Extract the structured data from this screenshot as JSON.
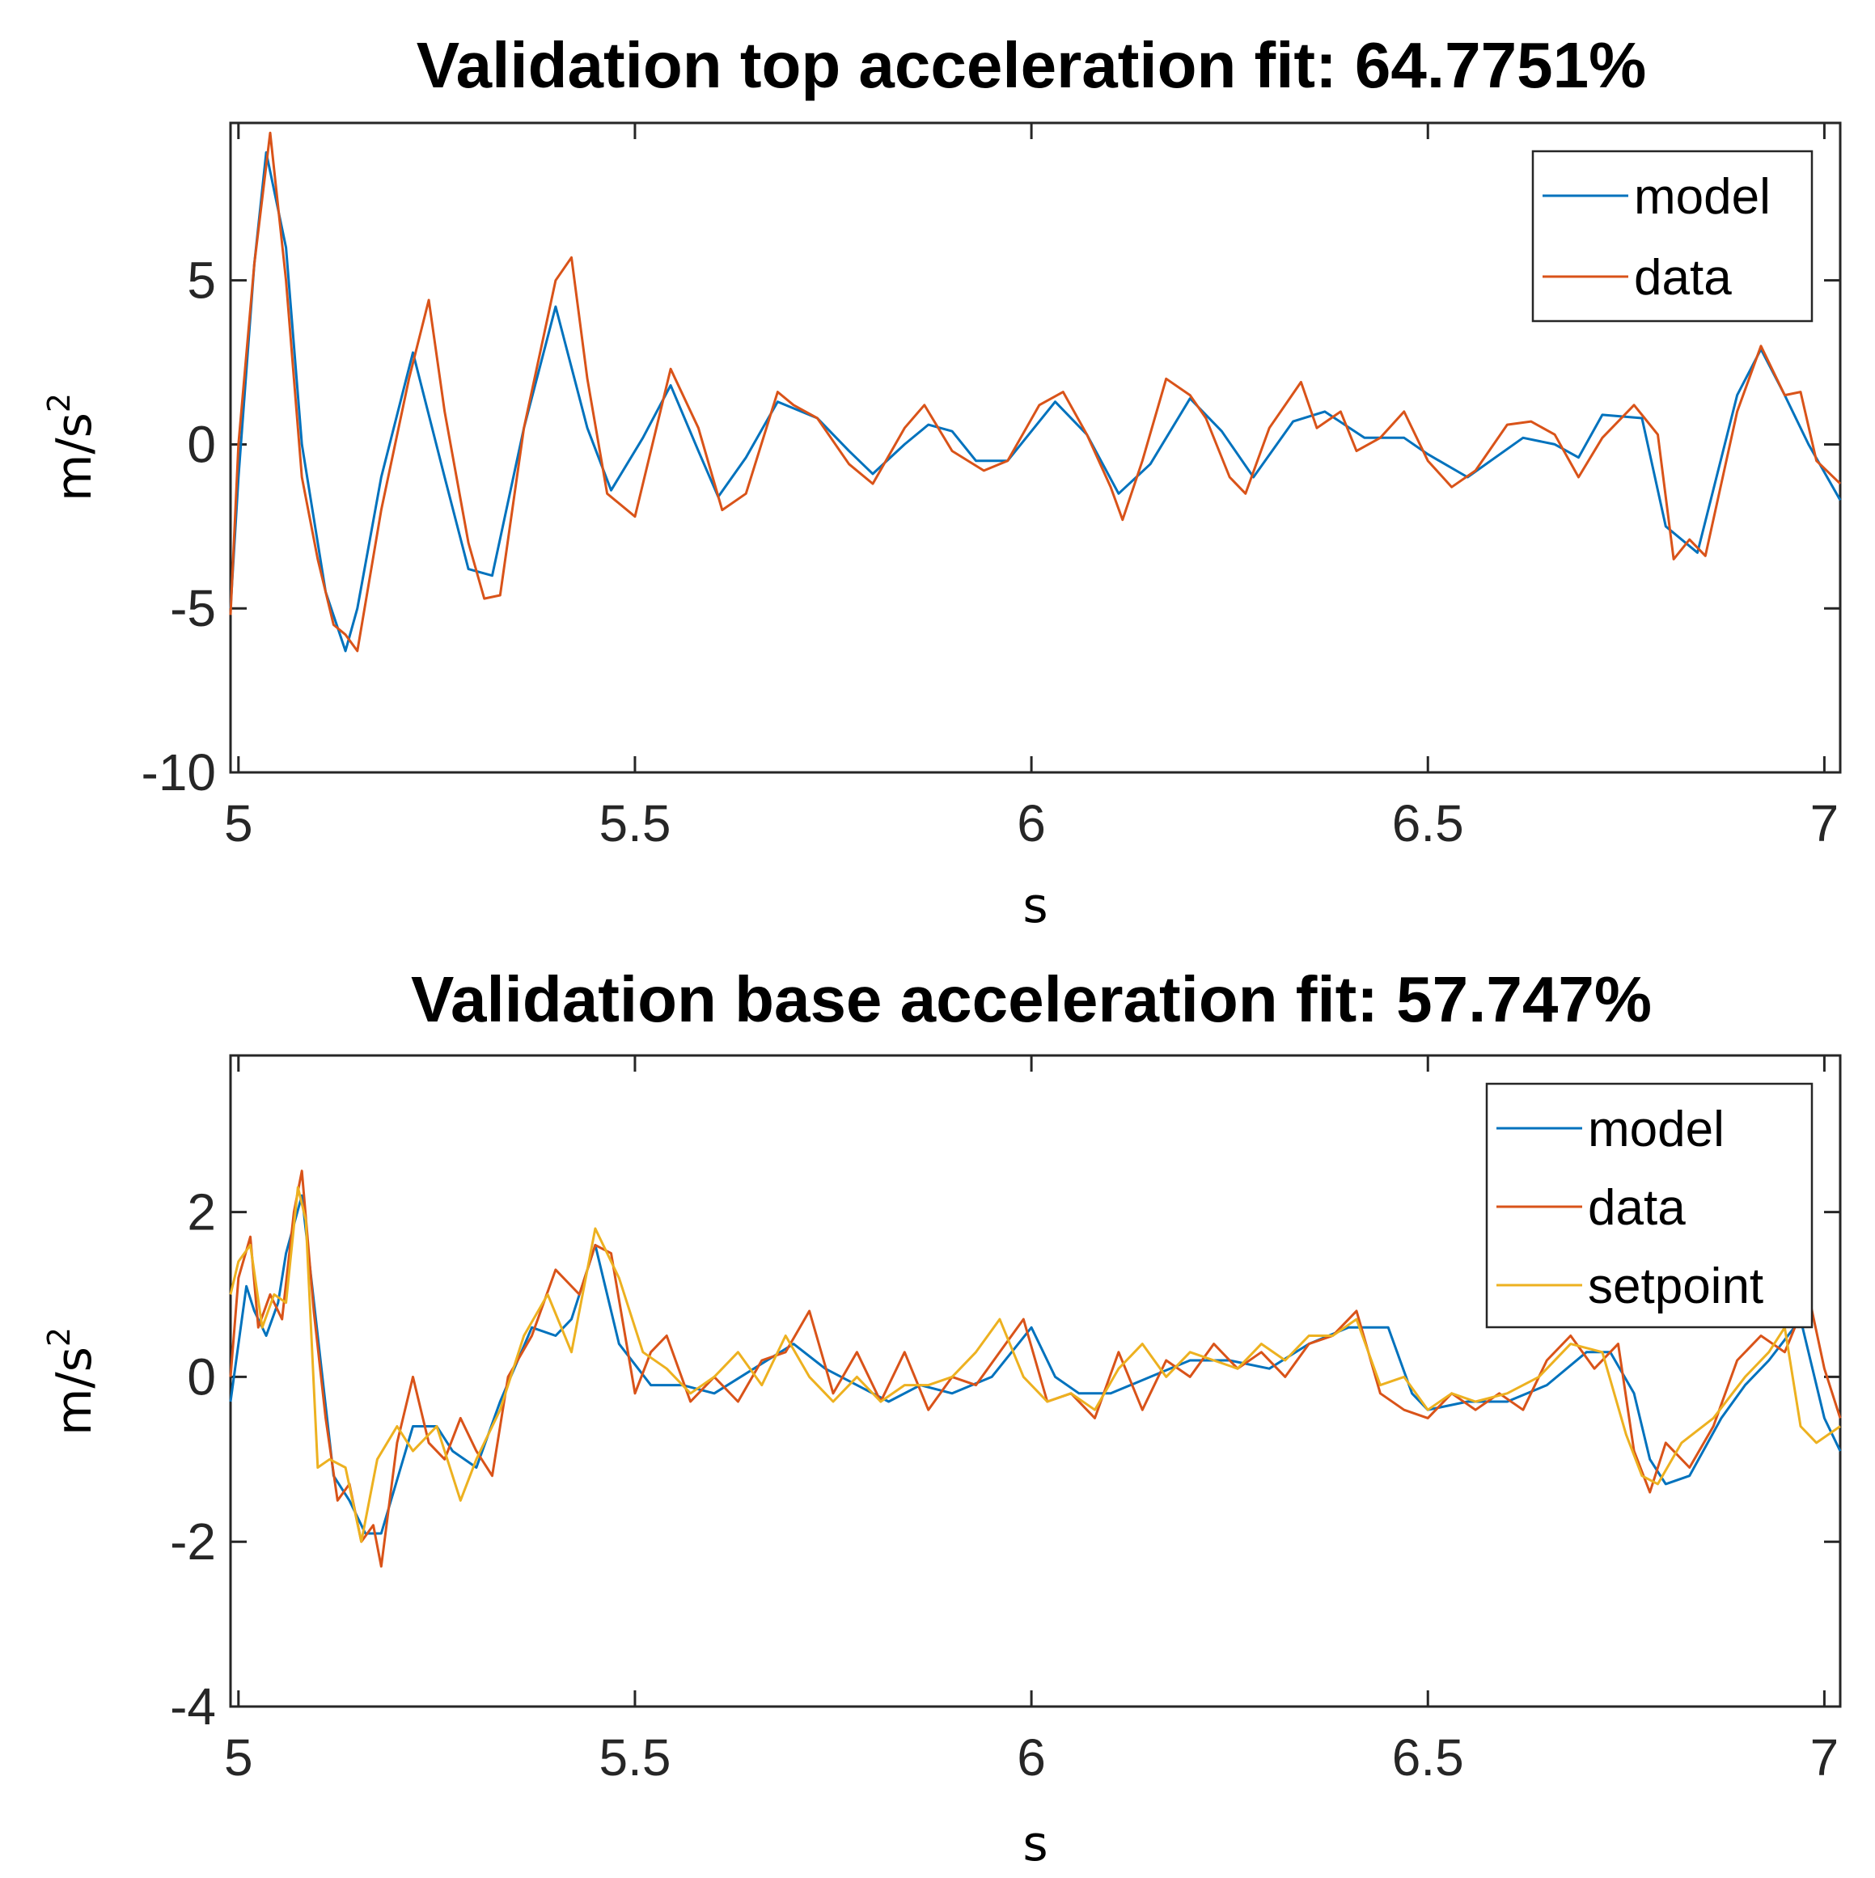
{
  "chart_data": [
    {
      "type": "line",
      "title": "Validation top acceleration fit: 64.7751%",
      "xlabel": "s",
      "ylabel": "m/s",
      "ylabel_sup": "2",
      "xlim": [
        4.99,
        7.02
      ],
      "ylim": [
        -10,
        9.8
      ],
      "xticks": [
        5,
        5.5,
        6,
        6.5,
        7
      ],
      "xtick_labels": [
        "5",
        "5.5",
        "6",
        "6.5",
        "7"
      ],
      "yticks": [
        -10,
        -5,
        0,
        5
      ],
      "ytick_labels": [
        "-10",
        "-5",
        "0",
        "5"
      ],
      "legend_position": "top-right",
      "series": [
        {
          "name": "model",
          "color": "#0072BD",
          "x": [
            4.99,
            5.0,
            5.02,
            5.035,
            5.06,
            5.08,
            5.11,
            5.135,
            5.15,
            5.18,
            5.22,
            5.26,
            5.29,
            5.32,
            5.36,
            5.4,
            5.44,
            5.47,
            5.51,
            5.545,
            5.58,
            5.605,
            5.64,
            5.68,
            5.73,
            5.77,
            5.8,
            5.84,
            5.87,
            5.9,
            5.93,
            5.97,
            6.03,
            6.07,
            6.11,
            6.15,
            6.2,
            6.24,
            6.28,
            6.33,
            6.37,
            6.42,
            6.47,
            6.5,
            6.55,
            6.62,
            6.66,
            6.69,
            6.72,
            6.77,
            6.8,
            6.84,
            6.89,
            6.92,
            6.95,
            6.98,
            7.02
          ],
          "y": [
            -5.0,
            -1.0,
            5.5,
            8.9,
            6.0,
            0.0,
            -4.5,
            -6.3,
            -5.0,
            -1.0,
            2.8,
            -1.0,
            -3.8,
            -4.0,
            0.5,
            4.2,
            0.5,
            -1.4,
            0.2,
            1.8,
            -0.2,
            -1.6,
            -0.4,
            1.3,
            0.8,
            -0.2,
            -0.9,
            0.0,
            0.6,
            0.4,
            -0.5,
            -0.5,
            1.3,
            0.3,
            -1.5,
            -0.6,
            1.4,
            0.4,
            -1.0,
            0.7,
            1.0,
            0.2,
            0.2,
            -0.3,
            -1.0,
            0.2,
            0.0,
            -0.4,
            0.9,
            0.8,
            -2.5,
            -3.3,
            1.5,
            2.9,
            1.5,
            0.0,
            -1.7
          ]
        },
        {
          "name": "data",
          "color": "#D95319",
          "x": [
            4.99,
            5.0,
            5.02,
            5.04,
            5.06,
            5.08,
            5.1,
            5.12,
            5.135,
            5.15,
            5.18,
            5.215,
            5.24,
            5.26,
            5.29,
            5.31,
            5.33,
            5.36,
            5.4,
            5.42,
            5.44,
            5.465,
            5.5,
            5.545,
            5.58,
            5.61,
            5.64,
            5.68,
            5.7,
            5.73,
            5.77,
            5.8,
            5.84,
            5.865,
            5.9,
            5.94,
            5.97,
            6.01,
            6.04,
            6.07,
            6.1,
            6.115,
            6.14,
            6.17,
            6.2,
            6.22,
            6.25,
            6.27,
            6.3,
            6.34,
            6.36,
            6.39,
            6.41,
            6.44,
            6.47,
            6.5,
            6.53,
            6.56,
            6.6,
            6.63,
            6.66,
            6.69,
            6.72,
            6.76,
            6.79,
            6.81,
            6.83,
            6.85,
            6.89,
            6.92,
            6.95,
            6.97,
            6.99,
            7.02
          ],
          "y": [
            -5.2,
            0.0,
            5.5,
            9.5,
            5.0,
            -1.0,
            -3.5,
            -5.5,
            -5.8,
            -6.3,
            -2.0,
            2.0,
            4.4,
            1.0,
            -3.0,
            -4.7,
            -4.6,
            0.5,
            5.0,
            5.7,
            2.0,
            -1.5,
            -2.2,
            2.3,
            0.5,
            -2.0,
            -1.5,
            1.6,
            1.2,
            0.8,
            -0.6,
            -1.2,
            0.5,
            1.2,
            -0.2,
            -0.8,
            -0.5,
            1.2,
            1.6,
            0.3,
            -1.3,
            -2.3,
            -0.5,
            2.0,
            1.5,
            0.8,
            -1.0,
            -1.5,
            0.5,
            1.9,
            0.5,
            1.0,
            -0.2,
            0.2,
            1.0,
            -0.5,
            -1.3,
            -0.8,
            0.6,
            0.7,
            0.3,
            -1.0,
            0.2,
            1.2,
            0.3,
            -3.5,
            -2.9,
            -3.4,
            1.0,
            3.0,
            1.5,
            1.6,
            -0.5,
            -1.2
          ]
        }
      ]
    },
    {
      "type": "line",
      "title": "Validation base acceleration fit: 57.747%",
      "xlabel": "s",
      "ylabel": "m/s",
      "ylabel_sup": "2",
      "xlim": [
        4.99,
        7.02
      ],
      "ylim": [
        -4,
        3.9
      ],
      "xticks": [
        5,
        5.5,
        6,
        6.5,
        7
      ],
      "xtick_labels": [
        "5",
        "5.5",
        "6",
        "6.5",
        "7"
      ],
      "yticks": [
        -4,
        -2,
        0,
        2
      ],
      "ytick_labels": [
        "-4",
        "-2",
        "0",
        "2"
      ],
      "legend_position": "top-right",
      "series": [
        {
          "name": "model",
          "color": "#0072BD",
          "x": [
            4.99,
            5.01,
            5.02,
            5.035,
            5.05,
            5.06,
            5.08,
            5.1,
            5.12,
            5.14,
            5.16,
            5.18,
            5.22,
            5.25,
            5.27,
            5.3,
            5.33,
            5.37,
            5.4,
            5.42,
            5.45,
            5.48,
            5.52,
            5.56,
            5.6,
            5.65,
            5.7,
            5.74,
            5.78,
            5.82,
            5.86,
            5.9,
            5.95,
            6.0,
            6.03,
            6.06,
            6.1,
            6.15,
            6.2,
            6.25,
            6.3,
            6.35,
            6.4,
            6.45,
            6.48,
            6.5,
            6.55,
            6.6,
            6.65,
            6.7,
            6.73,
            6.76,
            6.78,
            6.8,
            6.83,
            6.87,
            6.9,
            6.93,
            6.97,
            7.0,
            7.02
          ],
          "y": [
            -0.3,
            1.1,
            0.8,
            0.5,
            0.9,
            1.5,
            2.2,
            0.5,
            -1.2,
            -1.5,
            -1.9,
            -1.9,
            -0.6,
            -0.6,
            -0.9,
            -1.1,
            -0.3,
            0.6,
            0.5,
            0.7,
            1.6,
            0.4,
            -0.1,
            -0.1,
            -0.2,
            0.1,
            0.4,
            0.1,
            -0.1,
            -0.3,
            -0.1,
            -0.2,
            0.0,
            0.6,
            0.0,
            -0.2,
            -0.2,
            0.0,
            0.2,
            0.2,
            0.1,
            0.4,
            0.6,
            0.6,
            -0.2,
            -0.4,
            -0.3,
            -0.3,
            -0.1,
            0.3,
            0.3,
            -0.2,
            -1.0,
            -1.3,
            -1.2,
            -0.5,
            -0.1,
            0.2,
            0.7,
            -0.5,
            -0.9
          ]
        },
        {
          "name": "data",
          "color": "#D95319",
          "x": [
            4.99,
            5.0,
            5.015,
            5.025,
            5.04,
            5.055,
            5.07,
            5.08,
            5.095,
            5.11,
            5.125,
            5.14,
            5.155,
            5.17,
            5.18,
            5.2,
            5.22,
            5.24,
            5.26,
            5.28,
            5.3,
            5.32,
            5.34,
            5.37,
            5.4,
            5.43,
            5.45,
            5.47,
            5.5,
            5.52,
            5.54,
            5.57,
            5.6,
            5.63,
            5.66,
            5.69,
            5.72,
            5.75,
            5.78,
            5.81,
            5.84,
            5.87,
            5.9,
            5.93,
            5.96,
            5.99,
            6.02,
            6.05,
            6.08,
            6.11,
            6.14,
            6.17,
            6.2,
            6.23,
            6.26,
            6.29,
            6.32,
            6.35,
            6.38,
            6.41,
            6.44,
            6.47,
            6.5,
            6.53,
            6.56,
            6.59,
            6.62,
            6.65,
            6.68,
            6.71,
            6.74,
            6.76,
            6.78,
            6.8,
            6.83,
            6.86,
            6.89,
            6.92,
            6.95,
            6.98,
            7.0,
            7.02
          ],
          "y": [
            0.0,
            1.2,
            1.7,
            0.6,
            1.0,
            0.7,
            2.0,
            2.5,
            0.8,
            -0.5,
            -1.5,
            -1.3,
            -2.0,
            -1.8,
            -2.3,
            -0.8,
            0.0,
            -0.8,
            -1.0,
            -0.5,
            -0.9,
            -1.2,
            0.0,
            0.5,
            1.3,
            1.0,
            1.6,
            1.5,
            -0.2,
            0.3,
            0.5,
            -0.3,
            0.0,
            -0.3,
            0.2,
            0.3,
            0.8,
            -0.2,
            0.3,
            -0.3,
            0.3,
            -0.4,
            0.0,
            -0.1,
            0.3,
            0.7,
            -0.3,
            -0.2,
            -0.5,
            0.3,
            -0.4,
            0.2,
            0.0,
            0.4,
            0.1,
            0.3,
            0.0,
            0.4,
            0.5,
            0.8,
            -0.2,
            -0.4,
            -0.5,
            -0.2,
            -0.4,
            -0.2,
            -0.4,
            0.2,
            0.5,
            0.1,
            0.4,
            -0.9,
            -1.4,
            -0.8,
            -1.1,
            -0.6,
            0.2,
            0.5,
            0.3,
            1.0,
            0.1,
            -0.5
          ]
        },
        {
          "name": "setpoint",
          "color": "#EDB120",
          "x": [
            4.99,
            5.0,
            5.015,
            5.03,
            5.045,
            5.06,
            5.075,
            5.085,
            5.1,
            5.115,
            5.135,
            5.155,
            5.175,
            5.2,
            5.22,
            5.25,
            5.28,
            5.3,
            5.33,
            5.36,
            5.39,
            5.42,
            5.45,
            5.48,
            5.51,
            5.54,
            5.57,
            5.6,
            5.63,
            5.66,
            5.69,
            5.72,
            5.75,
            5.78,
            5.81,
            5.84,
            5.87,
            5.9,
            5.93,
            5.96,
            5.99,
            6.02,
            6.05,
            6.08,
            6.11,
            6.14,
            6.17,
            6.2,
            6.23,
            6.26,
            6.29,
            6.32,
            6.35,
            6.38,
            6.41,
            6.44,
            6.47,
            6.5,
            6.53,
            6.56,
            6.6,
            6.64,
            6.68,
            6.72,
            6.75,
            6.77,
            6.79,
            6.82,
            6.86,
            6.9,
            6.93,
            6.95,
            6.97,
            6.99,
            7.02
          ],
          "y": [
            1.0,
            1.4,
            1.6,
            0.6,
            1.0,
            0.9,
            2.3,
            1.9,
            -1.1,
            -1.0,
            -1.1,
            -2.0,
            -1.0,
            -0.6,
            -0.9,
            -0.6,
            -1.5,
            -1.0,
            -0.4,
            0.5,
            1.0,
            0.3,
            1.8,
            1.2,
            0.3,
            0.1,
            -0.2,
            0.0,
            0.3,
            -0.1,
            0.5,
            0.0,
            -0.3,
            0.0,
            -0.3,
            -0.1,
            -0.1,
            0.0,
            0.3,
            0.7,
            0.0,
            -0.3,
            -0.2,
            -0.4,
            0.1,
            0.4,
            0.0,
            0.3,
            0.2,
            0.1,
            0.4,
            0.2,
            0.5,
            0.5,
            0.7,
            -0.1,
            0.0,
            -0.4,
            -0.2,
            -0.3,
            -0.2,
            0.0,
            0.4,
            0.3,
            -0.7,
            -1.2,
            -1.3,
            -0.8,
            -0.5,
            0.0,
            0.3,
            0.6,
            -0.6,
            -0.8,
            -0.6
          ]
        }
      ]
    }
  ]
}
